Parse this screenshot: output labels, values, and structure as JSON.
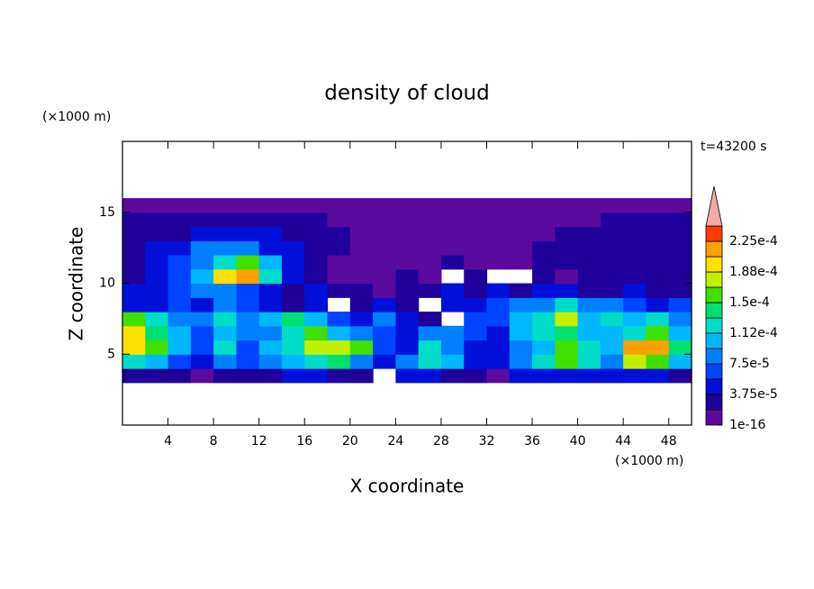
{
  "chart_data": {
    "type": "contour",
    "title": "density of cloud",
    "xlabel": "X coordinate",
    "ylabel": "Z coordinate",
    "x_unit": "(×1000 m)",
    "y_unit": "(×1000 m)",
    "annotation": "t=43200 s",
    "xlim": [
      0,
      50
    ],
    "ylim": [
      0,
      20
    ],
    "xticks": [
      4,
      8,
      12,
      16,
      20,
      24,
      28,
      32,
      36,
      40,
      44,
      48
    ],
    "yticks": [
      5,
      10,
      15
    ],
    "x": [
      1,
      3,
      5,
      7,
      9,
      11,
      13,
      15,
      17,
      19,
      21,
      23,
      25,
      27,
      29,
      31,
      33,
      35,
      37,
      39,
      41,
      43,
      45,
      47,
      49
    ],
    "y": [
      3.5,
      4.5,
      5.5,
      6.5,
      7.5,
      8.5,
      9.5,
      10.5,
      11.5,
      12.5,
      13.5,
      14.5,
      15.5
    ],
    "z": [
      [
        3e-05,
        3e-05,
        3e-05,
        1e-05,
        3e-05,
        3e-05,
        3e-05,
        5e-05,
        5e-05,
        3e-05,
        3e-05,
        null,
        5e-05,
        5e-05,
        3e-05,
        3e-05,
        1e-05,
        5e-05,
        5e-05,
        5e-05,
        5e-05,
        5e-05,
        5e-05,
        5e-05,
        3e-05
      ],
      [
        0.00013,
        0.00011,
        7e-05,
        5e-05,
        8e-05,
        6e-05,
        8e-05,
        0.0001,
        0.00012,
        0.00014,
        9e-05,
        4e-05,
        8e-05,
        0.00013,
        0.0001,
        5e-05,
        4e-05,
        9e-05,
        0.00013,
        0.00015,
        0.00012,
        8e-05,
        0.00017,
        0.00016,
        0.00011
      ],
      [
        0.00019,
        0.00016,
        0.00011,
        6e-05,
        0.00012,
        7e-05,
        0.00011,
        0.00013,
        0.00017,
        0.00018,
        0.00015,
        6e-05,
        5e-05,
        0.00012,
        9e-05,
        5e-05,
        5e-05,
        8e-05,
        0.00011,
        0.00015,
        0.00013,
        0.00011,
        0.00021,
        0.00022,
        0.00014
      ],
      [
        0.0002,
        0.00014,
        0.0001,
        7e-05,
        0.00011,
        8e-05,
        9e-05,
        0.00012,
        0.00016,
        0.0001,
        8e-05,
        6e-05,
        5e-05,
        9e-05,
        8e-05,
        6e-05,
        5e-05,
        0.0001,
        0.00012,
        0.00014,
        0.00011,
        0.0001,
        0.00013,
        0.00016,
        0.0001
      ],
      [
        0.00016,
        0.00012,
        8e-05,
        9e-05,
        0.00012,
        9e-05,
        0.0001,
        0.00014,
        0.00011,
        6e-05,
        5e-05,
        8e-05,
        5e-05,
        3e-05,
        null,
        7e-05,
        6e-05,
        0.0001,
        0.00013,
        0.00017,
        0.00011,
        0.00013,
        0.0001,
        0.00012,
        8e-05
      ],
      [
        5e-05,
        5e-05,
        7e-05,
        5e-05,
        8e-05,
        6e-05,
        5e-05,
        3e-05,
        5e-05,
        null,
        3e-05,
        5e-05,
        3e-05,
        null,
        5e-05,
        5e-05,
        7e-05,
        8e-05,
        9e-05,
        0.00012,
        8e-05,
        9e-05,
        7e-05,
        5e-05,
        6e-05
      ],
      [
        5e-05,
        5e-05,
        6e-05,
        8e-05,
        9e-05,
        7e-05,
        5e-05,
        3e-05,
        5e-05,
        3e-05,
        3e-05,
        1e-05,
        3e-05,
        3e-05,
        5e-05,
        3e-05,
        5e-05,
        3e-05,
        5e-05,
        5e-05,
        3e-05,
        3e-05,
        5e-05,
        3e-05,
        3e-05
      ],
      [
        3e-05,
        5e-05,
        6e-05,
        0.0001,
        0.0002,
        0.00022,
        0.00012,
        5e-05,
        3e-05,
        1e-05,
        1e-05,
        1e-05,
        3e-05,
        1e-05,
        null,
        3e-05,
        null,
        null,
        3e-05,
        1e-05,
        3e-05,
        3e-05,
        3e-05,
        3e-05,
        3e-05
      ],
      [
        3e-05,
        5e-05,
        7e-05,
        9e-05,
        0.00013,
        0.00016,
        0.0001,
        5e-05,
        3e-05,
        1e-05,
        1e-05,
        1e-05,
        1e-05,
        1e-05,
        3e-05,
        1e-05,
        1e-05,
        1e-05,
        3e-05,
        3e-05,
        3e-05,
        3e-05,
        3e-05,
        3e-05,
        3e-05
      ],
      [
        3e-05,
        5e-05,
        5e-05,
        8e-05,
        8e-05,
        8e-05,
        5e-05,
        5e-05,
        3e-05,
        3e-05,
        1e-05,
        1e-05,
        1e-05,
        1e-05,
        1e-05,
        1e-05,
        1e-05,
        1e-05,
        3e-05,
        3e-05,
        3e-05,
        3e-05,
        3e-05,
        3e-05,
        3e-05
      ],
      [
        3e-05,
        3e-05,
        3e-05,
        5e-05,
        5e-05,
        5e-05,
        5e-05,
        3e-05,
        3e-05,
        3e-05,
        1e-05,
        1e-05,
        1e-05,
        1e-05,
        1e-05,
        1e-05,
        1e-05,
        1e-05,
        1e-05,
        3e-05,
        3e-05,
        3e-05,
        3e-05,
        3e-05,
        3e-05
      ],
      [
        3e-05,
        3e-05,
        3e-05,
        3e-05,
        3e-05,
        3e-05,
        3e-05,
        3e-05,
        3e-05,
        1e-05,
        1e-05,
        1e-05,
        1e-05,
        1e-05,
        1e-05,
        1e-05,
        1e-05,
        1e-05,
        1e-05,
        1e-05,
        1e-05,
        3e-05,
        3e-05,
        3e-05,
        3e-05
      ],
      [
        1e-05,
        1e-05,
        1e-05,
        1e-05,
        1e-05,
        1e-05,
        1e-05,
        1e-05,
        1e-05,
        1e-05,
        1e-05,
        1e-05,
        1e-05,
        1e-05,
        1e-05,
        1e-05,
        1e-05,
        1e-05,
        1e-05,
        1e-05,
        1e-05,
        1e-05,
        1e-05,
        1e-05,
        1e-05
      ]
    ],
    "colorbar": {
      "levels": [
        1e-16,
        1.875e-05,
        3.75e-05,
        5.625e-05,
        7.5e-05,
        9.375e-05,
        0.0001125,
        0.00013125,
        0.00015,
        0.00016875,
        0.0001875,
        0.00020625,
        0.000225,
        0.00024375
      ],
      "colors": [
        "#5b0aa0",
        "#20009a",
        "#0010d8",
        "#0044ff",
        "#0080ff",
        "#00b8ff",
        "#00dcc8",
        "#00e070",
        "#40e000",
        "#c0f000",
        "#ffe000",
        "#ffa000",
        "#ff3c00"
      ],
      "extend_color": "#f4a8a8",
      "ticks": [
        {
          "value": 1e-16,
          "label": "1e-16"
        },
        {
          "value": 3.75e-05,
          "label": "3.75e-5"
        },
        {
          "value": 7.5e-05,
          "label": "7.5e-5"
        },
        {
          "value": 0.0001125,
          "label": "1.12e-4"
        },
        {
          "value": 0.00015,
          "label": "1.5e-4"
        },
        {
          "value": 0.0001875,
          "label": "1.88e-4"
        },
        {
          "value": 0.000225,
          "label": "2.25e-4"
        }
      ]
    }
  }
}
